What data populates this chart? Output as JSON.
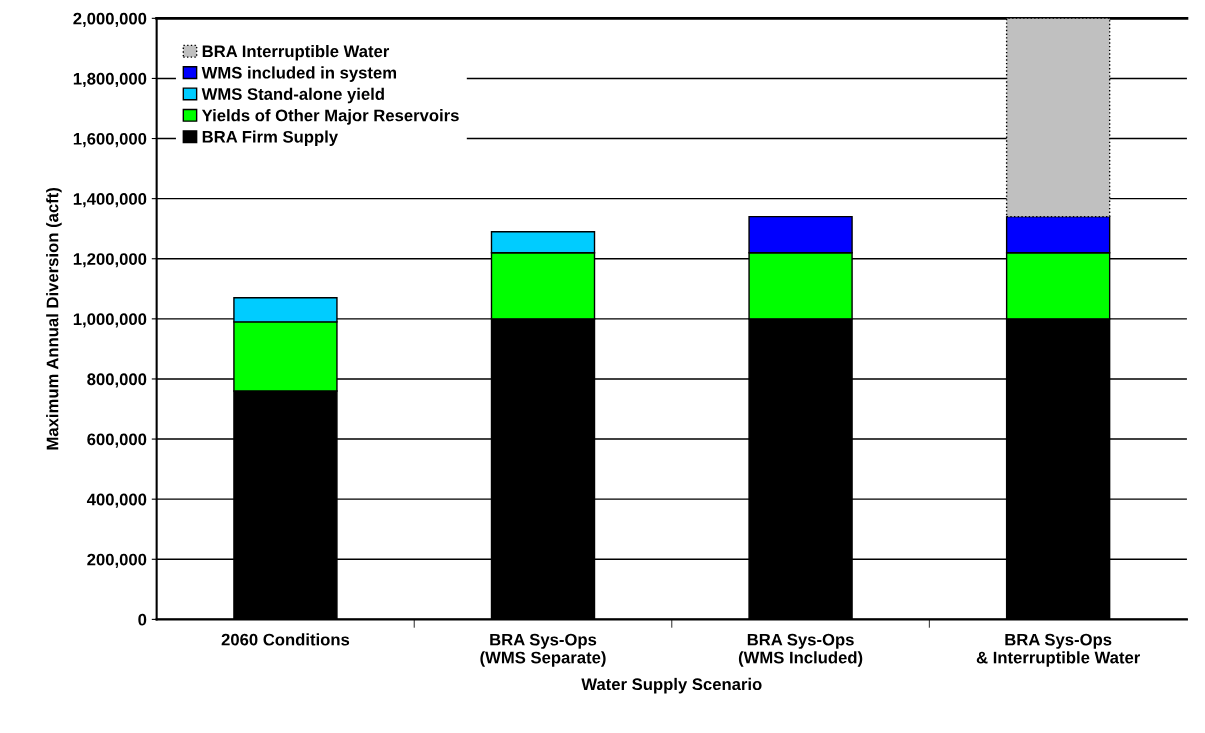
{
  "chart_data": {
    "type": "bar",
    "stacked": true,
    "categories": [
      "2060 Conditions",
      "BRA Sys-Ops\n(WMS Separate)",
      "BRA Sys-Ops\n(WMS Included)",
      "BRA Sys-Ops\n& Interruptible Water"
    ],
    "xlabel": "Water Supply Scenario",
    "ylabel": "Maximum Annual Diversion (acft)",
    "series": [
      {
        "name": "BRA Firm Supply",
        "color": "#000000",
        "values": [
          760000,
          1000000,
          1000000,
          1000000
        ]
      },
      {
        "name": "Yields of Other Major Reservoirs",
        "color": "#00ff00",
        "values": [
          230000,
          220000,
          220000,
          220000
        ]
      },
      {
        "name": "WMS Stand-alone yield",
        "color": "#00ccff",
        "values": [
          80000,
          70000,
          null,
          null
        ]
      },
      {
        "name": "WMS included in system",
        "color": "#0000ff",
        "values": [
          null,
          null,
          120000,
          120000
        ]
      },
      {
        "name": "BRA Interruptible Water",
        "color": "#c0c0c0",
        "line_style": "dotted",
        "values": [
          null,
          null,
          null,
          660000
        ]
      }
    ],
    "ylim": [
      0,
      2000000
    ],
    "yticks": [
      {
        "value": 0,
        "label": "0"
      },
      {
        "value": 200000,
        "label": "200,000"
      },
      {
        "value": 400000,
        "label": "400,000"
      },
      {
        "value": 600000,
        "label": "600,000"
      },
      {
        "value": 800000,
        "label": "800,000"
      },
      {
        "value": 1000000,
        "label": "1,000,000"
      },
      {
        "value": 1200000,
        "label": "1,200,000"
      },
      {
        "value": 1400000,
        "label": "1,400,000"
      },
      {
        "value": 1600000,
        "label": "1,600,000"
      },
      {
        "value": 1800000,
        "label": "1,800,000"
      },
      {
        "value": 2000000,
        "label": "2,000,000"
      }
    ],
    "grid": "y",
    "legend": "top left"
  }
}
